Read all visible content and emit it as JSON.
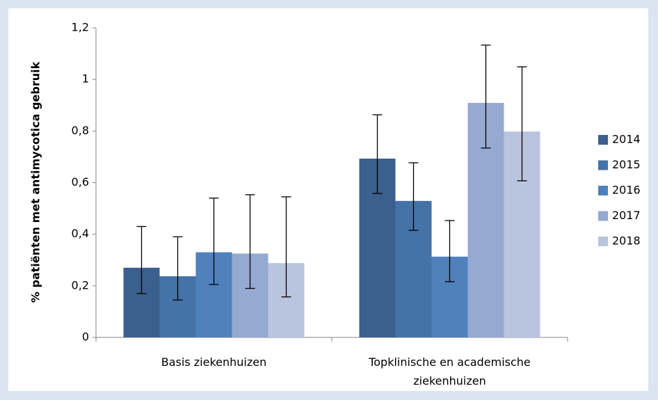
{
  "chart_data": {
    "type": "bar",
    "y_label": "% patiënten met antimycotica gebruik",
    "categories": [
      "Basis ziekenhuizen",
      "Topklinische en academische ziekenhuizen"
    ],
    "series": [
      {
        "name": "2014",
        "color": "#3b5f8e",
        "values": [
          0.27,
          0.693
        ],
        "lower": [
          0.17,
          0.558
        ],
        "upper": [
          0.43,
          0.863
        ]
      },
      {
        "name": "2015",
        "color": "#4572a7",
        "values": [
          0.237,
          0.529
        ],
        "lower": [
          0.145,
          0.415
        ],
        "upper": [
          0.39,
          0.677
        ]
      },
      {
        "name": "2016",
        "color": "#4f81bd",
        "values": [
          0.33,
          0.313
        ],
        "lower": [
          0.205,
          0.216
        ],
        "upper": [
          0.54,
          0.453
        ]
      },
      {
        "name": "2017",
        "color": "#95a9d1",
        "values": [
          0.325,
          0.909
        ],
        "lower": [
          0.19,
          0.734
        ],
        "upper": [
          0.553,
          1.133
        ]
      },
      {
        "name": "2018",
        "color": "#b9c5df",
        "values": [
          0.288,
          0.798
        ],
        "lower": [
          0.157,
          0.607
        ],
        "upper": [
          0.545,
          1.049
        ]
      }
    ],
    "ylim": [
      0,
      1.2
    ],
    "yticks": [
      0,
      {
        "value": 0.2,
        "label": "0,2"
      },
      {
        "value": 0.4,
        "label": "0,4"
      },
      {
        "value": 0.6,
        "label": "0,6"
      },
      {
        "value": 0.8,
        "label": "0,8"
      },
      1,
      {
        "value": 1.2,
        "label": "1,2"
      }
    ],
    "grid": false,
    "legend_position": "right"
  }
}
